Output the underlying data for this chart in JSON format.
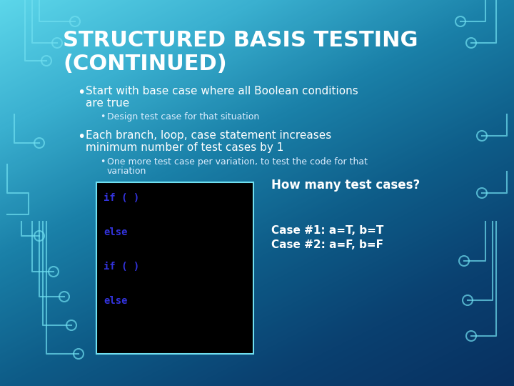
{
  "title_line1": "STRUCTURED BASIS TESTING",
  "title_line2": "(CONTINUED)",
  "bg_colors": [
    "#5cd4e8",
    "#3ab8d8",
    "#1a8fb8",
    "#0d6090",
    "#0a4878",
    "#083a65"
  ],
  "bullet1_line1": "Start with base case where all Boolean conditions",
  "bullet1_line2": "are true",
  "sub_bullet1": "Design test case for that situation",
  "bullet2_line1": "Each branch, loop, case statement increases",
  "bullet2_line2": "minimum number of test cases by 1",
  "sub_bullet2_line1": "One more test case per variation, to test the code for that",
  "sub_bullet2_line2": "variation",
  "code_lines": [
    "if ( )",
    "",
    "else",
    "",
    "",
    "if ( )",
    "",
    "else"
  ],
  "code_color": "#3333dd",
  "code_bg": "#000000",
  "question": "How many test cases?",
  "answers": [
    "Case #1: a=T, b=T",
    "Case #2: a=F, b=F"
  ],
  "title_color": "#ffffff",
  "text_color": "#ffffff",
  "sub_text_color": "#ddeeff",
  "circuit_color": "#70dff0"
}
